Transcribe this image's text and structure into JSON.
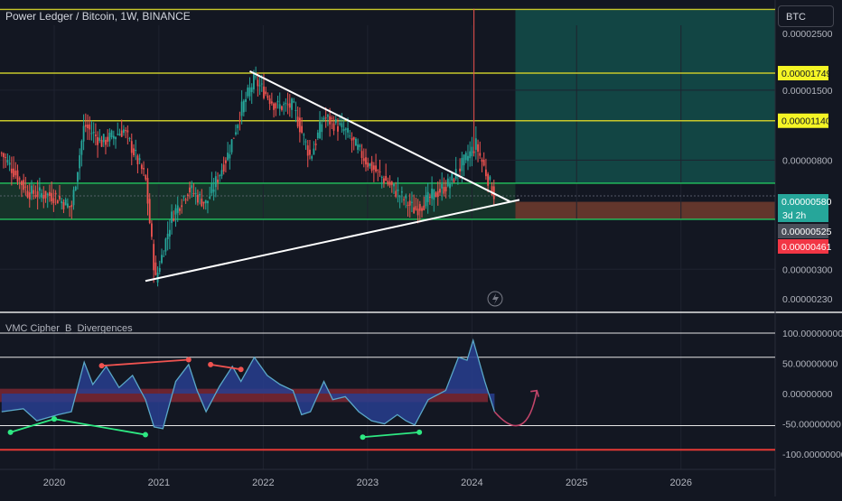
{
  "header": {
    "title": "Power Ledger / Bitcoin, 1W, BINANCE",
    "currency": "BTC"
  },
  "indicator": {
    "title": "VMC Cipher_B_Divergences"
  },
  "colors": {
    "bg": "#131722",
    "bull": "#26a69a",
    "bear": "#ef5350",
    "level_line": "#c8c82a",
    "support_line": "#22c55e",
    "teal_zone": "#134e4a",
    "brown_zone": "#6b3a2e",
    "wave_fill": "#283e8f",
    "wave_line": "#5aa8c8",
    "red_band": "#8b2a35"
  },
  "chart_data": [
    {
      "type": "candlestick",
      "title": "Power Ledger / Bitcoin, 1W, BINANCE",
      "x_ticks": [
        "2020",
        "2021",
        "2022",
        "2023",
        "2024",
        "2025",
        "2026"
      ],
      "y_scale": "log",
      "y_ticks": [
        "0.00002500",
        "0.00001500",
        "0.00000800",
        "0.00000300",
        "0.00000230"
      ],
      "price_labels": [
        {
          "text": "0.00001749",
          "value": 1.749e-05,
          "kind": "level"
        },
        {
          "text": "0.00001140",
          "value": 1.14e-05,
          "kind": "level"
        },
        {
          "text": "0.00000580",
          "value": 5.8e-06,
          "kind": "last"
        },
        {
          "text": "3d 2h",
          "kind": "countdown"
        },
        {
          "text": "0.00000525",
          "value": 5.25e-06,
          "kind": "grey"
        },
        {
          "text": "0.00000461",
          "value": 4.61e-06,
          "kind": "red"
        }
      ],
      "horizontal_levels": [
        3.1e-05,
        1.749e-05,
        1.14e-05,
        6.5e-06,
        4.7e-06
      ],
      "trendlines": [
        {
          "name": "descending",
          "from": [
            "2021-11-15",
            1.78e-05
          ],
          "to": [
            "2024-05-15",
            5.5e-06
          ]
        },
        {
          "name": "ascending",
          "from": [
            "2020-11-15",
            2.7e-06
          ],
          "to": [
            "2024-06-15",
            5.6e-06
          ]
        }
      ],
      "zones": [
        {
          "kind": "target",
          "x_from": "2024-06-01",
          "y_from": 6.5e-06,
          "y_to": 3.1e-05
        },
        {
          "kind": "stop",
          "x_from": "2024-06-01",
          "y_from": 4.7e-06,
          "y_to": 5.5e-06
        }
      ],
      "price_path": [
        [
          "2019-07-01",
          8.5e-06
        ],
        [
          "2019-10-01",
          6e-06
        ],
        [
          "2020-01-01",
          5.8e-06
        ],
        [
          "2020-03-01",
          5.2e-06
        ],
        [
          "2020-04-15",
          1.1e-05
        ],
        [
          "2020-06-15",
          9.4e-06
        ],
        [
          "2020-09-01",
          1.05e-05
        ],
        [
          "2020-11-15",
          6.8e-06
        ],
        [
          "2020-12-20",
          2.7e-06
        ],
        [
          "2021-02-15",
          4.8e-06
        ],
        [
          "2021-04-15",
          6.2e-06
        ],
        [
          "2021-06-15",
          5.4e-06
        ],
        [
          "2021-09-01",
          8.5e-06
        ],
        [
          "2021-10-15",
          1.25e-05
        ],
        [
          "2021-12-01",
          1.65e-05
        ],
        [
          "2022-02-15",
          1.3e-05
        ],
        [
          "2022-04-15",
          1.3e-05
        ],
        [
          "2022-06-15",
          8.2e-06
        ],
        [
          "2022-08-01",
          1.18e-05
        ],
        [
          "2022-10-15",
          1.04e-05
        ],
        [
          "2023-01-01",
          7.8e-06
        ],
        [
          "2023-04-01",
          6.2e-06
        ],
        [
          "2023-06-15",
          5.1e-06
        ],
        [
          "2023-08-15",
          5.8e-06
        ],
        [
          "2023-10-15",
          6.5e-06
        ],
        [
          "2023-12-15",
          8.2e-06
        ],
        [
          "2024-01-15",
          9.2e-06
        ],
        [
          "2024-03-01",
          6.6e-06
        ],
        [
          "2024-03-20",
          5.8e-06
        ]
      ],
      "spikes": [
        [
          "2024-01-05",
          3.12e-05
        ]
      ]
    },
    {
      "type": "area",
      "title": "VMC Cipher_B_Divergences",
      "y_ticks": [
        "100.00000000",
        "50.00000000",
        "0.00000000",
        "-50.00000000",
        "-100.00000000"
      ],
      "ylim": [
        -110,
        110
      ],
      "levels": [
        100,
        60,
        -53,
        -93
      ],
      "wave_points": [
        [
          "2019-07-01",
          -30
        ],
        [
          "2019-09-15",
          -25
        ],
        [
          "2019-11-01",
          -45
        ],
        [
          "2020-01-15",
          -35
        ],
        [
          "2020-03-01",
          -30
        ],
        [
          "2020-04-15",
          52
        ],
        [
          "2020-05-15",
          15
        ],
        [
          "2020-07-01",
          45
        ],
        [
          "2020-08-15",
          10
        ],
        [
          "2020-10-01",
          30
        ],
        [
          "2020-11-15",
          -10
        ],
        [
          "2020-12-15",
          -55
        ],
        [
          "2021-01-15",
          -58
        ],
        [
          "2021-03-01",
          20
        ],
        [
          "2021-04-15",
          48
        ],
        [
          "2021-05-15",
          5
        ],
        [
          "2021-06-15",
          -30
        ],
        [
          "2021-08-01",
          12
        ],
        [
          "2021-09-15",
          45
        ],
        [
          "2021-10-15",
          20
        ],
        [
          "2021-12-01",
          60
        ],
        [
          "2022-01-15",
          30
        ],
        [
          "2022-03-01",
          15
        ],
        [
          "2022-04-15",
          5
        ],
        [
          "2022-05-15",
          -35
        ],
        [
          "2022-06-15",
          -30
        ],
        [
          "2022-08-01",
          20
        ],
        [
          "2022-09-01",
          -10
        ],
        [
          "2022-10-15",
          -5
        ],
        [
          "2022-12-01",
          -30
        ],
        [
          "2023-01-15",
          -45
        ],
        [
          "2023-03-01",
          -50
        ],
        [
          "2023-04-15",
          -35
        ],
        [
          "2023-05-15",
          -45
        ],
        [
          "2023-06-15",
          -52
        ],
        [
          "2023-08-01",
          -10
        ],
        [
          "2023-10-01",
          5
        ],
        [
          "2023-11-15",
          60
        ],
        [
          "2023-12-15",
          55
        ],
        [
          "2024-01-05",
          88
        ],
        [
          "2024-02-15",
          20
        ],
        [
          "2024-03-20",
          -30
        ]
      ],
      "divergences": [
        {
          "from": [
            "2019-08-01",
            -64
          ],
          "to": [
            "2020-01-01",
            -42
          ],
          "color": "green"
        },
        {
          "from": [
            "2020-01-01",
            -42
          ],
          "to": [
            "2020-11-15",
            -68
          ],
          "color": "green"
        },
        {
          "from": [
            "2020-06-15",
            46
          ],
          "to": [
            "2021-04-15",
            56
          ],
          "color": "red"
        },
        {
          "from": [
            "2021-10-15",
            40
          ],
          "to": [
            "2021-07-01",
            48
          ],
          "color": "red"
        },
        {
          "from": [
            "2022-12-15",
            -72
          ],
          "to": [
            "2023-07-01",
            -64
          ],
          "color": "green"
        }
      ],
      "projection_arrow": {
        "from": [
          "2024-03-20",
          -30
        ],
        "to": [
          "2024-08-15",
          5
        ]
      }
    }
  ]
}
